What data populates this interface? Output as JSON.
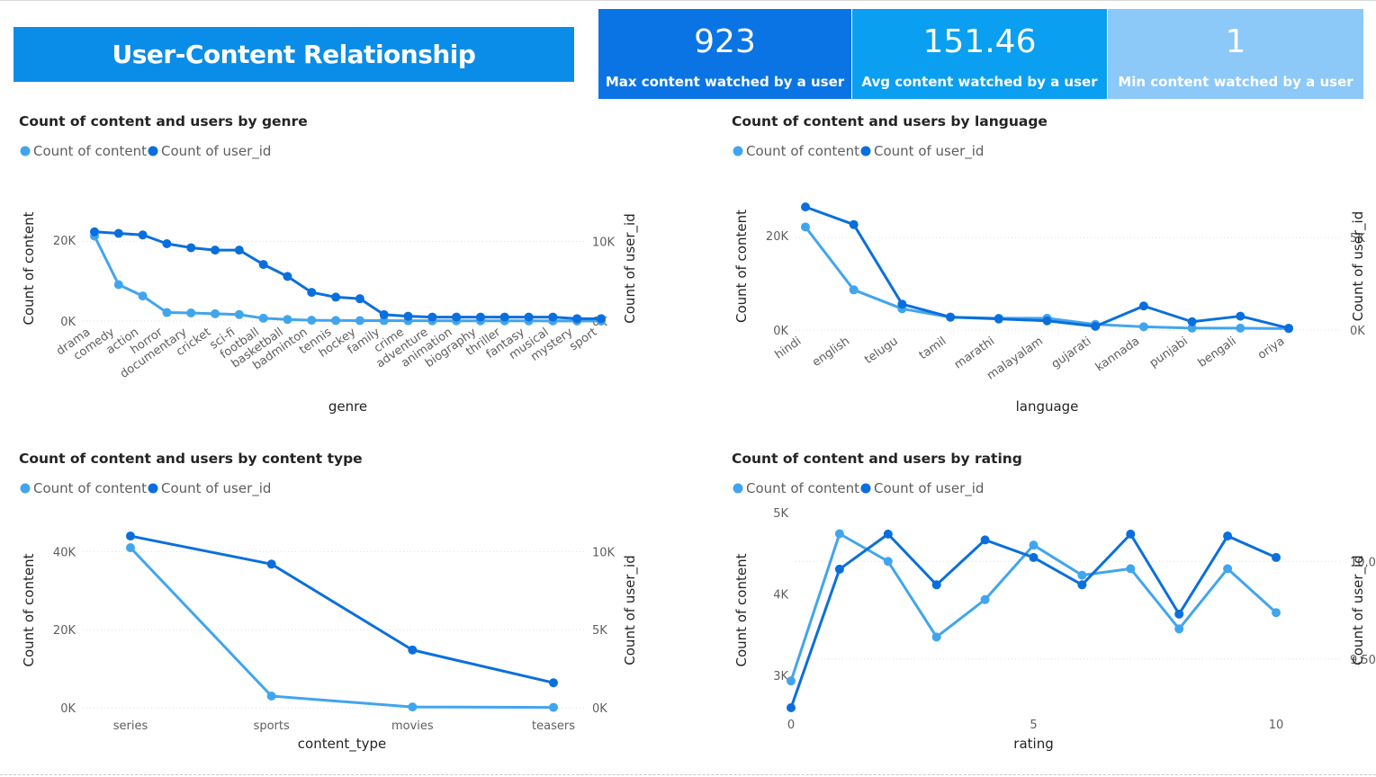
{
  "header": {
    "title": "User-Content Relationship"
  },
  "cards": [
    {
      "value": "923",
      "label": "Max content watched by a user",
      "color": "#0a74e5"
    },
    {
      "value": "151.46",
      "label": "Avg content watched by a user",
      "color": "#0a9ff0"
    },
    {
      "value": "1",
      "label": "Min content watched by a user",
      "color": "#8cc8f8"
    }
  ],
  "colors": {
    "content": "#41a5ee",
    "users": "#0a6fdc"
  },
  "chart_data": [
    {
      "id": "genre",
      "type": "line",
      "title": "Count of content and users by genre",
      "legend": [
        "Count of content",
        "Count of user_id"
      ],
      "xlabel": "genre",
      "ylabel_left": "Count of content",
      "ylabel_right": "Count of user_id",
      "categories": [
        "drama",
        "comedy",
        "action",
        "horror",
        "documentary",
        "cricket",
        "sci-fi",
        "football",
        "basketball",
        "badminton",
        "tennis",
        "hockey",
        "family",
        "crime",
        "adventure",
        "animation",
        "biography",
        "thriller",
        "fantasy",
        "musical",
        "mystery",
        "sport"
      ],
      "series": [
        {
          "name": "Count of content",
          "axis": "left",
          "values": [
            21000,
            9000,
            6200,
            2100,
            2000,
            1800,
            1600,
            700,
            400,
            200,
            150,
            120,
            100,
            80,
            70,
            60,
            55,
            50,
            45,
            40,
            30,
            20
          ]
        },
        {
          "name": "Count of user_id",
          "axis": "right",
          "values": [
            11200,
            11000,
            10800,
            9700,
            9200,
            8900,
            8900,
            7100,
            5600,
            3600,
            3000,
            2800,
            800,
            600,
            500,
            500,
            500,
            500,
            500,
            500,
            300,
            300
          ]
        }
      ],
      "ylim_left": [
        0,
        26000
      ],
      "ylim_right": [
        0,
        13200
      ],
      "ticks_left": [
        {
          "v": 0,
          "t": "0K"
        },
        {
          "v": 20000,
          "t": "20K"
        }
      ],
      "ticks_right": [
        {
          "v": 0,
          "t": "0K"
        },
        {
          "v": 10000,
          "t": "10K"
        }
      ],
      "rotate": true
    },
    {
      "id": "language",
      "type": "line",
      "title": "Count of content and users by language",
      "legend": [
        "Count of content",
        "Count of user_id"
      ],
      "xlabel": "language",
      "ylabel_left": "Count of content",
      "ylabel_right": "Count of user_id",
      "categories": [
        "hindi",
        "english",
        "telugu",
        "tamil",
        "marathi",
        "malayalam",
        "gujarati",
        "kannada",
        "punjabi",
        "bengali",
        "oriya"
      ],
      "series": [
        {
          "name": "Count of content",
          "axis": "left",
          "values": [
            21800,
            8500,
            4500,
            2700,
            2500,
            2500,
            1200,
            700,
            400,
            400,
            300
          ]
        },
        {
          "name": "Count of user_id",
          "axis": "right",
          "values": [
            6650,
            5700,
            1400,
            700,
            600,
            500,
            200,
            1300,
            450,
            750,
            100
          ]
        }
      ],
      "ylim_left": [
        0,
        27000
      ],
      "ylim_right": [
        0,
        6900
      ],
      "ticks_left": [
        {
          "v": 0,
          "t": "0K"
        },
        {
          "v": 20000,
          "t": "20K"
        }
      ],
      "ticks_right": [
        {
          "v": 0,
          "t": "0K"
        },
        {
          "v": 5000,
          "t": "5K"
        }
      ],
      "rotate": true
    },
    {
      "id": "content_type",
      "type": "line",
      "title": "Count of content and users by content type",
      "legend": [
        "Count of content",
        "Count of user_id"
      ],
      "xlabel": "content_type",
      "ylabel_left": "Count of content",
      "ylabel_right": "Count of user_id",
      "categories": [
        "series",
        "sports",
        "movies",
        "teasers"
      ],
      "series": [
        {
          "name": "Count of content",
          "axis": "left",
          "values": [
            41000,
            3000,
            200,
            100
          ]
        },
        {
          "name": "Count of user_id",
          "axis": "right",
          "values": [
            11000,
            9200,
            3700,
            1600
          ]
        }
      ],
      "ylim_left": [
        0,
        50000
      ],
      "ylim_right": [
        0,
        12500
      ],
      "ticks_left": [
        {
          "v": 0,
          "t": "0K"
        },
        {
          "v": 20000,
          "t": "20K"
        },
        {
          "v": 40000,
          "t": "40K"
        }
      ],
      "ticks_right": [
        {
          "v": 0,
          "t": "0K"
        },
        {
          "v": 5000,
          "t": "5K"
        },
        {
          "v": 10000,
          "t": "10K"
        }
      ],
      "rotate": false
    },
    {
      "id": "rating",
      "type": "line",
      "title": "Count of content and users by rating",
      "legend": [
        "Count of content",
        "Count of user_id"
      ],
      "xlabel": "rating",
      "ylabel_left": "Count of content",
      "ylabel_right": "Count of user_id",
      "numeric_x": true,
      "x": [
        0,
        1,
        2,
        3,
        4,
        5,
        6,
        7,
        8,
        9,
        10
      ],
      "x_ticks": [
        0,
        5,
        10
      ],
      "series": [
        {
          "name": "Count of content",
          "axis": "left",
          "values": [
            2930,
            4740,
            4400,
            3470,
            3930,
            4600,
            4230,
            4310,
            3570,
            4310,
            3770
          ]
        },
        {
          "name": "Count of user_id",
          "axis": "right",
          "values": [
            9250,
            9960,
            10140,
            9880,
            10110,
            10020,
            9880,
            10140,
            9730,
            10130,
            10020
          ]
        }
      ],
      "ylim_left": [
        2600,
        5000
      ],
      "ylim_right": [
        9250,
        10250
      ],
      "ticks_left": [
        {
          "v": 3000,
          "t": "3K"
        },
        {
          "v": 4000,
          "t": "4K"
        },
        {
          "v": 5000,
          "t": "5K"
        }
      ],
      "ticks_right": [
        {
          "v": 9500,
          "t": "9,500"
        },
        {
          "v": 10000,
          "t": "10,000"
        }
      ],
      "rotate": false
    }
  ]
}
